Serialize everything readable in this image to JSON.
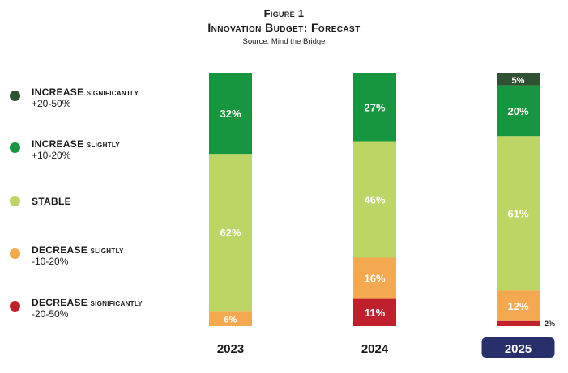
{
  "figure_label": "Figure 1",
  "title": "Innovation Budget: Forecast",
  "source": "Source: Mind the Bridge",
  "colors": {
    "increase_significantly": "#2f5233",
    "increase_slightly": "#16963f",
    "stable": "#bdd564",
    "decrease_slightly": "#f4a84f",
    "decrease_significantly": "#c0202b",
    "highlight": "#27306a"
  },
  "legend": [
    {
      "key": "increase_significantly",
      "main": "INCREASE",
      "qualifier": "significantly",
      "range": "+20-50%"
    },
    {
      "key": "increase_slightly",
      "main": "INCREASE",
      "qualifier": "slightly",
      "range": "+10-20%"
    },
    {
      "key": "stable",
      "main": "STABLE",
      "qualifier": "",
      "range": ""
    },
    {
      "key": "decrease_slightly",
      "main": "DECREASE",
      "qualifier": "slightly",
      "range": "-10-20%"
    },
    {
      "key": "decrease_significantly",
      "main": "DECREASE",
      "qualifier": "significantly",
      "range": "-20-50%"
    }
  ],
  "chart_data": {
    "type": "bar",
    "stacked": true,
    "categories": [
      "2023",
      "2024",
      "2025"
    ],
    "highlighted_category": "2025",
    "series": [
      {
        "key": "decrease_significantly",
        "name": "DECREASE significantly -20-50%",
        "values": [
          0,
          11,
          2
        ]
      },
      {
        "key": "decrease_slightly",
        "name": "DECREASE slightly -10-20%",
        "values": [
          6,
          16,
          12
        ]
      },
      {
        "key": "stable",
        "name": "STABLE",
        "values": [
          62,
          46,
          61
        ]
      },
      {
        "key": "increase_slightly",
        "name": "INCREASE slightly +10-20%",
        "values": [
          32,
          27,
          20
        ]
      },
      {
        "key": "increase_significantly",
        "name": "INCREASE significantly +20-50%",
        "values": [
          0,
          0,
          5
        ]
      }
    ],
    "labels": [
      [
        "",
        "11%",
        "2%"
      ],
      [
        "6%",
        "16%",
        "12%"
      ],
      [
        "62%",
        "46%",
        "61%"
      ],
      [
        "32%",
        "27%",
        "20%"
      ],
      [
        "",
        "",
        "5%"
      ]
    ],
    "ylim": [
      0,
      100
    ],
    "legend_position": "left"
  }
}
